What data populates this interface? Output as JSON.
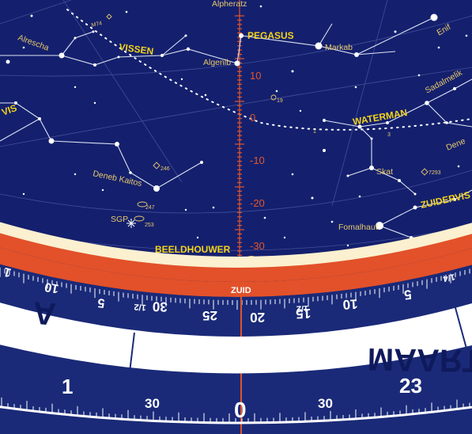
{
  "colors": {
    "sky": "#14206e",
    "orange_ring": "#e2512a",
    "cream_ring": "#fbf0cf",
    "dial": "#1a2a78",
    "month_band": "#ffffff",
    "label_yellow": "#f2d21b",
    "dec_red": "#e0562c"
  },
  "constellations": [
    {
      "key": "pegasus",
      "name": "PEGASUS"
    },
    {
      "key": "vissen",
      "name": "VISSEN"
    },
    {
      "key": "waterman",
      "name": "WATERMAN"
    },
    {
      "key": "beeldhouwer",
      "name": "BEELDHOUWER"
    },
    {
      "key": "zuidervis",
      "name": "ZUIDERVIS"
    },
    {
      "key": "ram_partial",
      "name": "VIS"
    }
  ],
  "stars": [
    {
      "key": "markab",
      "name": "Markab"
    },
    {
      "key": "enif",
      "name": "Enif"
    },
    {
      "key": "algenib",
      "name": "Algenib"
    },
    {
      "key": "alrescha",
      "name": "Alrescha"
    },
    {
      "key": "sadalmelik",
      "name": "Sadalmelik"
    },
    {
      "key": "deneb_kaitos",
      "name": "Deneb Kaitos"
    },
    {
      "key": "skat",
      "name": "Skat"
    },
    {
      "key": "fomalhaut",
      "name": "Fomalhaut"
    },
    {
      "key": "deneb_partial",
      "name": "Dene"
    },
    {
      "key": "alpheratz_partial",
      "name": "Alpheratz"
    }
  ],
  "objects": {
    "m74": "M74",
    "n246": "246",
    "n247": "247",
    "n253": "253",
    "n7293": "7293",
    "n7793": "7793",
    "sgp": "SGP",
    "n19": "19",
    "n1": "1",
    "n3": "3"
  },
  "declination_ticks": [
    "10",
    "0",
    "-10",
    "-20",
    "-30"
  ],
  "compass_label": "ZUID",
  "hour_scale": {
    "major_left": [
      "1",
      "10",
      "5",
      "1/2"
    ],
    "main": [
      "30",
      "25",
      "20",
      "15",
      "10",
      "5"
    ],
    "right": [
      "1/2",
      "1/4"
    ]
  },
  "month_label": "MAART",
  "month_partial_left": "A",
  "bottom_scale": {
    "hour_left": "1",
    "min_left": "30",
    "center": "0",
    "min_right": "30",
    "hour_right": "23"
  }
}
